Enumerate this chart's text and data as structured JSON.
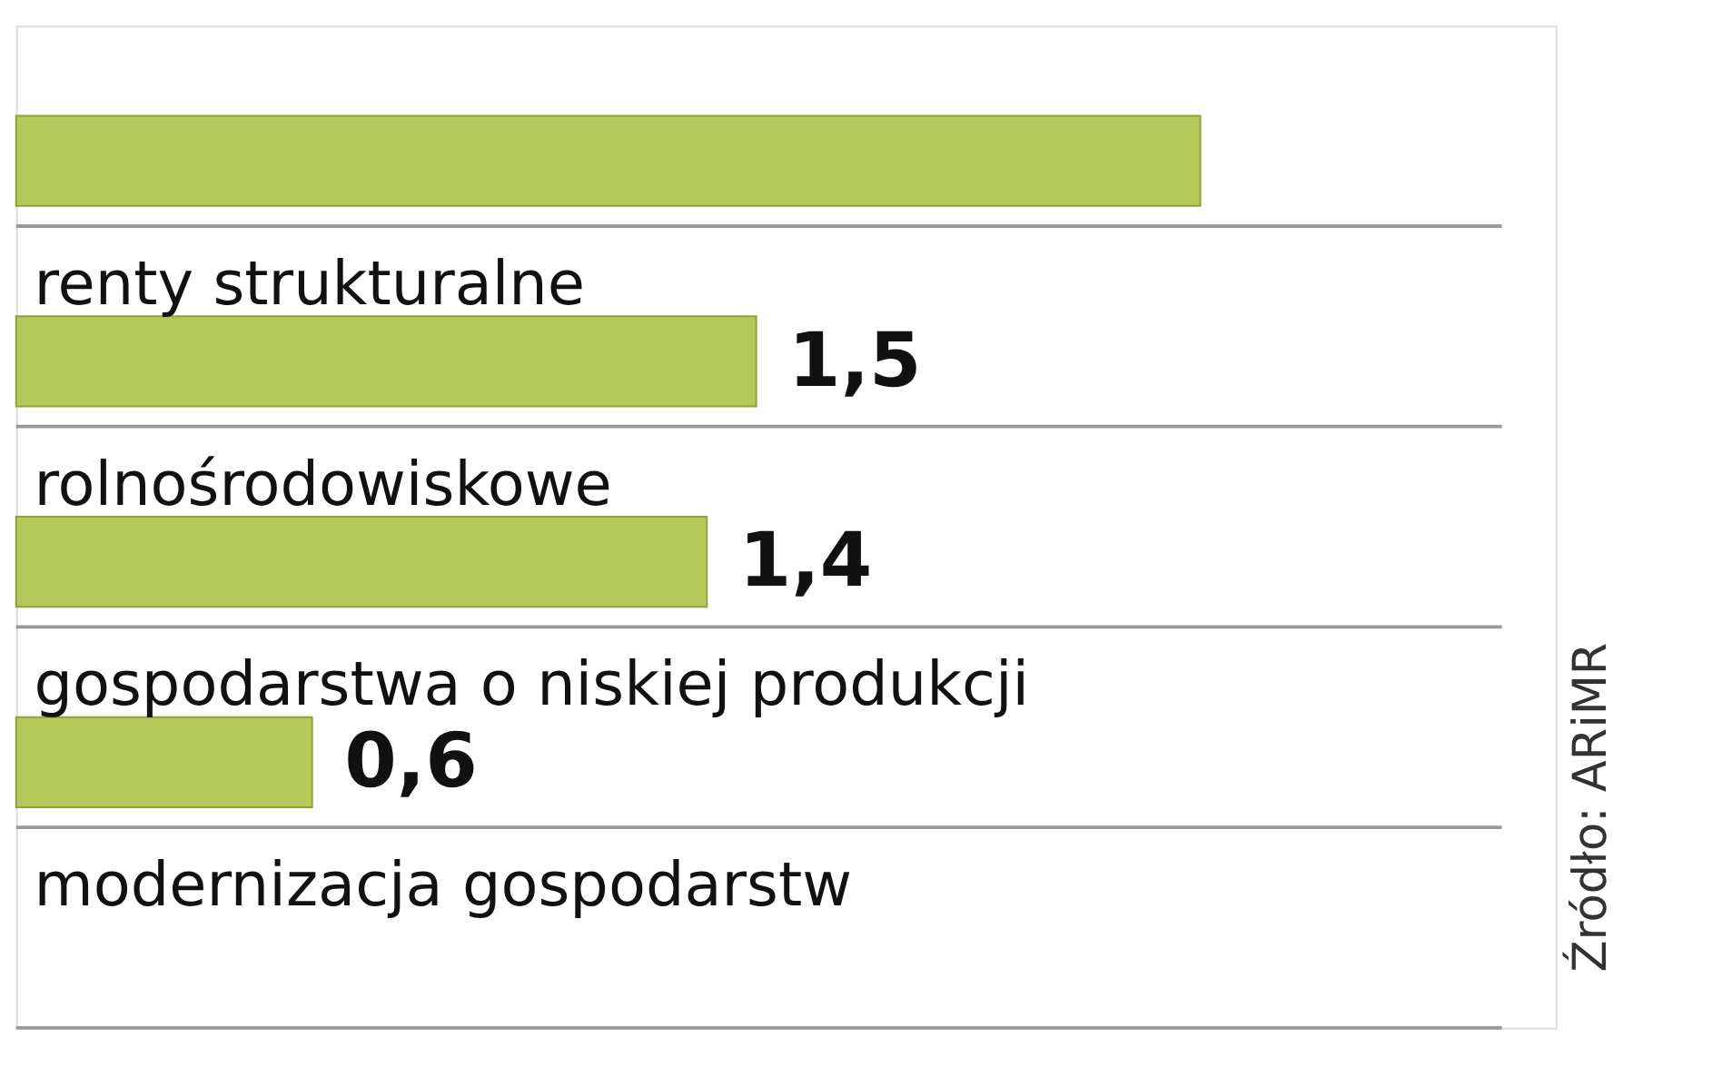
{
  "chart_data": {
    "type": "bar",
    "orientation": "horizontal",
    "categories": [
      null,
      "renty strukturalne",
      "rolnośrodowiskowe",
      "gospodarstwa o niskiej produkcji",
      "modernizacja gospodarstw"
    ],
    "values": [
      2.4,
      1.5,
      1.4,
      0.6,
      null
    ],
    "value_labels": [
      null,
      "1,5",
      "1,4",
      "0,6",
      null
    ],
    "color": "#b5c95a",
    "annotations": [
      "Źródło: ARiMR"
    ]
  }
}
